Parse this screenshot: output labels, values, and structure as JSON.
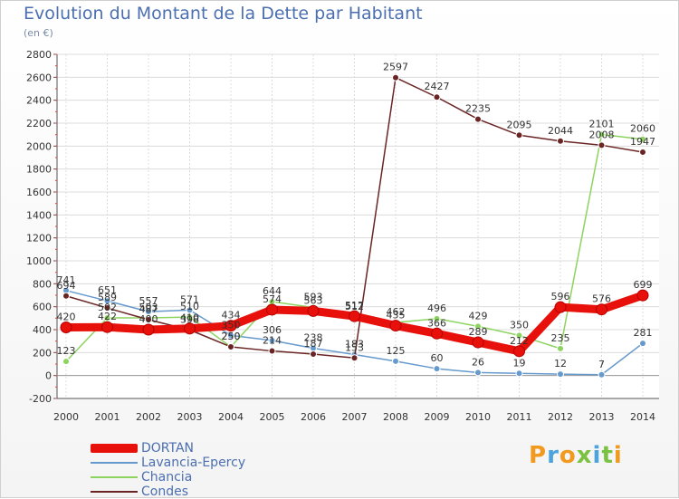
{
  "title": "Evolution du Montant de la Dette par Habitant",
  "unit_label": "(en €)",
  "logo": {
    "text": "Proxiti",
    "letter_colors": [
      "#f29a1f",
      "#4ca3dd",
      "#f29a1f",
      "#7cc242",
      "#4ca3dd",
      "#7cc242",
      "#f29a1f"
    ]
  },
  "chart_data": {
    "type": "line",
    "x": [
      "2000",
      "2001",
      "2002",
      "2003",
      "2004",
      "2005",
      "2006",
      "2007",
      "2008",
      "2009",
      "2010",
      "2011",
      "2012",
      "2013",
      "2014"
    ],
    "ylim": [
      -200,
      2800
    ],
    "yticks": [
      -200,
      0,
      200,
      400,
      600,
      800,
      1000,
      1200,
      1400,
      1600,
      1800,
      2000,
      2200,
      2400,
      2600,
      2800
    ],
    "grid": true,
    "legend_position": "bottom-left",
    "series": [
      {
        "name": "DORTAN",
        "color": "#e8100a",
        "values": [
          420,
          422,
          400,
          410,
          434,
          574,
          563,
          517,
          435,
          366,
          289,
          212,
          596,
          576,
          699
        ]
      },
      {
        "name": "Lavancia-Epercy",
        "color": "#6699cc",
        "values": [
          741,
          651,
          557,
          571,
          350,
          306,
          238,
          183,
          125,
          60,
          26,
          19,
          12,
          7,
          281
        ]
      },
      {
        "name": "Chancia",
        "color": "#8dd35f",
        "values": [
          123,
          502,
          503,
          510,
          250,
          644,
          593,
          512,
          462,
          496,
          429,
          350,
          235,
          2101,
          2060
        ]
      },
      {
        "name": "Condes",
        "color": "#6b2424",
        "values": [
          694,
          589,
          487,
          398,
          250,
          214,
          187,
          153,
          2597,
          2427,
          2235,
          2095,
          2044,
          2008,
          1947
        ]
      }
    ]
  }
}
